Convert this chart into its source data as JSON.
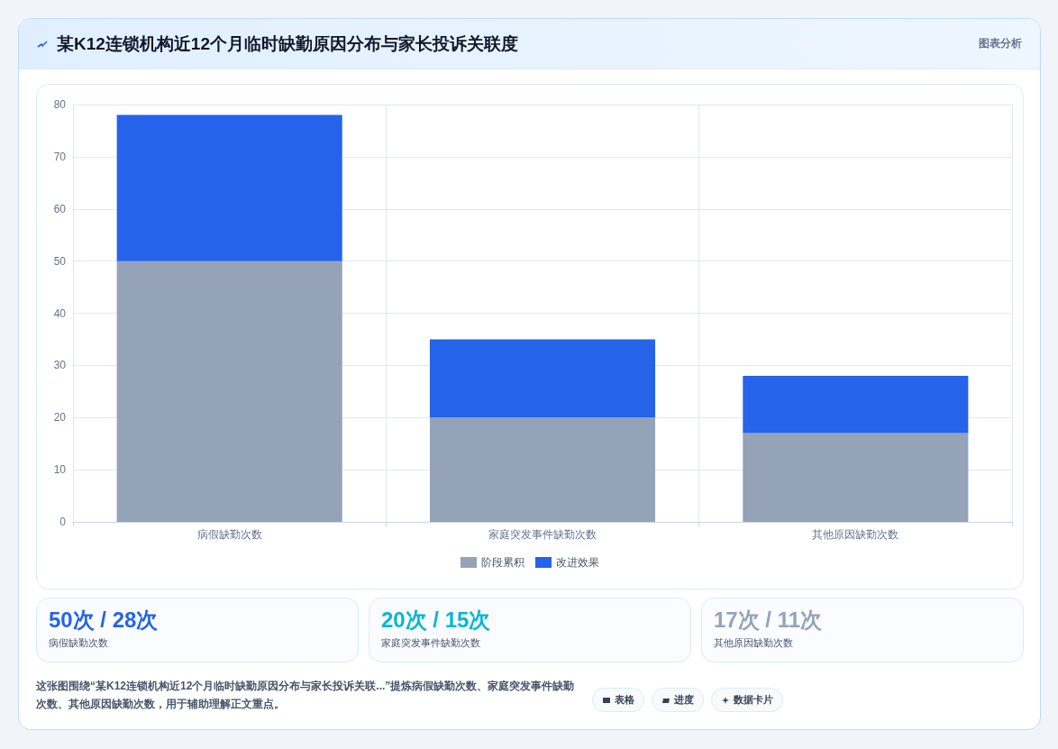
{
  "chart_data": {
    "type": "bar",
    "title": "某K12连锁机构近12个月临时缺勤原因分布与家长投诉关联度",
    "categories": [
      "病假缺勤次数",
      "家庭突发事件缺勤次数",
      "其他原因缺勤次数"
    ],
    "series": [
      {
        "name": "阶段累积",
        "color": "#94a3b8",
        "values": [
          50,
          20,
          17
        ]
      },
      {
        "name": "改进效果",
        "color": "#2563eb",
        "values": [
          28,
          15,
          11
        ]
      }
    ],
    "stacked": true,
    "ylim": [
      0,
      80
    ],
    "yticks": [
      0,
      10,
      20,
      30,
      40,
      50,
      60,
      70,
      80
    ],
    "grid": true,
    "legend": "bottom",
    "annotations": [
      "图表分析",
      "50次 / 28次",
      "病假缺勤次数",
      "20次 / 15次",
      "家庭突发事件缺勤次数",
      "17次 / 11次",
      "其他原因缺勤次数",
      "这张图围绕“某K12连锁机构近12个月临时缺勤原因分布与家长投诉关联...”提炼病假缺勤次数、家庭突发事件缺勤次数、其他原因缺勤次数，用于辅助理解正文重点。",
      "表格",
      "进度",
      "数据卡片"
    ]
  }
}
